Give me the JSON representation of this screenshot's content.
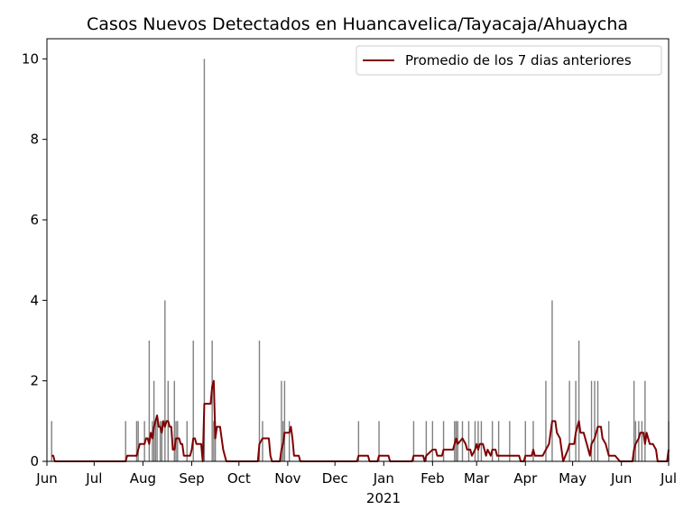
{
  "chart_data": {
    "type": "bar",
    "title": "Casos Nuevos Detectados en Huancavelica/Tayacaja/Ahuaycha",
    "xlabel": "",
    "ylabel": "",
    "x_year_label": "2021",
    "xlim": [
      "2020-06-01",
      "2021-07-01"
    ],
    "ylim": [
      0,
      10.5
    ],
    "yticks": [
      0,
      2,
      4,
      6,
      8,
      10
    ],
    "xticks": [
      {
        "date": "2020-06-01",
        "label": "Jun"
      },
      {
        "date": "2020-07-01",
        "label": "Jul"
      },
      {
        "date": "2020-08-01",
        "label": "Aug"
      },
      {
        "date": "2020-09-01",
        "label": "Sep"
      },
      {
        "date": "2020-10-01",
        "label": "Oct"
      },
      {
        "date": "2020-11-01",
        "label": "Nov"
      },
      {
        "date": "2020-12-01",
        "label": "Dec"
      },
      {
        "date": "2021-01-01",
        "label": "Jan"
      },
      {
        "date": "2021-02-01",
        "label": "Feb"
      },
      {
        "date": "2021-03-01",
        "label": "Mar"
      },
      {
        "date": "2021-04-01",
        "label": "Apr"
      },
      {
        "date": "2021-05-01",
        "label": "May"
      },
      {
        "date": "2021-06-01",
        "label": "Jun"
      },
      {
        "date": "2021-07-01",
        "label": "Jul"
      }
    ],
    "bars_color": "#808080",
    "line_color": "#800000",
    "legend_position": "top-right",
    "grid": false,
    "series": [
      {
        "type": "bar",
        "values": [
          [
            "2020-06-04",
            1
          ],
          [
            "2020-07-21",
            1
          ],
          [
            "2020-07-28",
            1
          ],
          [
            "2020-07-29",
            1
          ],
          [
            "2020-08-02",
            1
          ],
          [
            "2020-08-05",
            3
          ],
          [
            "2020-08-07",
            1
          ],
          [
            "2020-08-08",
            2
          ],
          [
            "2020-08-09",
            1
          ],
          [
            "2020-08-10",
            1
          ],
          [
            "2020-08-12",
            1
          ],
          [
            "2020-08-13",
            1
          ],
          [
            "2020-08-15",
            4
          ],
          [
            "2020-08-17",
            2
          ],
          [
            "2020-08-21",
            2
          ],
          [
            "2020-08-22",
            1
          ],
          [
            "2020-08-23",
            1
          ],
          [
            "2020-08-29",
            1
          ],
          [
            "2020-09-02",
            3
          ],
          [
            "2020-09-09",
            10
          ],
          [
            "2020-09-14",
            3
          ],
          [
            "2020-09-15",
            1
          ],
          [
            "2020-09-16",
            1
          ],
          [
            "2020-10-14",
            3
          ],
          [
            "2020-10-16",
            1
          ],
          [
            "2020-10-28",
            2
          ],
          [
            "2020-10-29",
            1
          ],
          [
            "2020-10-30",
            2
          ],
          [
            "2020-11-02",
            1
          ],
          [
            "2020-12-16",
            1
          ],
          [
            "2020-12-29",
            1
          ],
          [
            "2021-01-20",
            1
          ],
          [
            "2021-01-28",
            1
          ],
          [
            "2021-02-01",
            1
          ],
          [
            "2021-02-08",
            1
          ],
          [
            "2021-02-15",
            1
          ],
          [
            "2021-02-16",
            1
          ],
          [
            "2021-02-17",
            1
          ],
          [
            "2021-02-20",
            1
          ],
          [
            "2021-02-24",
            1
          ],
          [
            "2021-02-28",
            1
          ],
          [
            "2021-03-02",
            1
          ],
          [
            "2021-03-04",
            1
          ],
          [
            "2021-03-11",
            1
          ],
          [
            "2021-03-15",
            1
          ],
          [
            "2021-03-22",
            1
          ],
          [
            "2021-04-01",
            1
          ],
          [
            "2021-04-06",
            1
          ],
          [
            "2021-04-14",
            2
          ],
          [
            "2021-04-18",
            4
          ],
          [
            "2021-04-29",
            2
          ],
          [
            "2021-05-03",
            2
          ],
          [
            "2021-05-05",
            3
          ],
          [
            "2021-05-13",
            2
          ],
          [
            "2021-05-15",
            2
          ],
          [
            "2021-05-17",
            2
          ],
          [
            "2021-05-24",
            1
          ],
          [
            "2021-06-09",
            2
          ],
          [
            "2021-06-10",
            1
          ],
          [
            "2021-06-12",
            1
          ],
          [
            "2021-06-14",
            1
          ],
          [
            "2021-06-16",
            2
          ],
          [
            "2021-07-01",
            1
          ]
        ]
      },
      {
        "type": "line",
        "name": "Promedio de los 7 dias anteriores",
        "values": [
          [
            "2020-06-04",
            0.14
          ],
          [
            "2020-06-05",
            0.14
          ],
          [
            "2020-06-06",
            0
          ],
          [
            "2020-07-21",
            0
          ],
          [
            "2020-07-22",
            0.14
          ],
          [
            "2020-07-28",
            0.14
          ],
          [
            "2020-07-29",
            0.29
          ],
          [
            "2020-07-30",
            0.43
          ],
          [
            "2020-08-02",
            0.43
          ],
          [
            "2020-08-03",
            0.57
          ],
          [
            "2020-08-04",
            0.57
          ],
          [
            "2020-08-05",
            0.43
          ],
          [
            "2020-08-06",
            0.71
          ],
          [
            "2020-08-07",
            0.57
          ],
          [
            "2020-08-08",
            0.86
          ],
          [
            "2020-08-09",
            1.0
          ],
          [
            "2020-08-10",
            1.14
          ],
          [
            "2020-08-11",
            0.86
          ],
          [
            "2020-08-12",
            0.86
          ],
          [
            "2020-08-13",
            0.71
          ],
          [
            "2020-08-14",
            1.0
          ],
          [
            "2020-08-15",
            0.86
          ],
          [
            "2020-08-16",
            1.0
          ],
          [
            "2020-08-17",
            1.0
          ],
          [
            "2020-08-18",
            0.86
          ],
          [
            "2020-08-19",
            0.86
          ],
          [
            "2020-08-20",
            0.29
          ],
          [
            "2020-08-21",
            0.29
          ],
          [
            "2020-08-22",
            0.57
          ],
          [
            "2020-08-24",
            0.57
          ],
          [
            "2020-08-25",
            0.43
          ],
          [
            "2020-08-26",
            0.43
          ],
          [
            "2020-08-27",
            0.14
          ],
          [
            "2020-08-31",
            0.14
          ],
          [
            "2020-09-01",
            0.29
          ],
          [
            "2020-09-02",
            0.57
          ],
          [
            "2020-09-03",
            0.57
          ],
          [
            "2020-09-04",
            0.43
          ],
          [
            "2020-09-07",
            0.43
          ],
          [
            "2020-09-08",
            0
          ],
          [
            "2020-09-09",
            1.43
          ],
          [
            "2020-09-13",
            1.43
          ],
          [
            "2020-09-14",
            1.86
          ],
          [
            "2020-09-15",
            2.0
          ],
          [
            "2020-09-16",
            0.57
          ],
          [
            "2020-09-17",
            0.86
          ],
          [
            "2020-09-19",
            0.86
          ],
          [
            "2020-09-20",
            0.57
          ],
          [
            "2020-09-21",
            0.29
          ],
          [
            "2020-09-22",
            0.14
          ],
          [
            "2020-09-23",
            0
          ],
          [
            "2020-10-13",
            0
          ],
          [
            "2020-10-14",
            0.43
          ],
          [
            "2020-10-16",
            0.57
          ],
          [
            "2020-10-20",
            0.57
          ],
          [
            "2020-10-21",
            0.14
          ],
          [
            "2020-10-22",
            0
          ],
          [
            "2020-10-27",
            0
          ],
          [
            "2020-10-28",
            0.29
          ],
          [
            "2020-10-29",
            0.43
          ],
          [
            "2020-10-30",
            0.71
          ],
          [
            "2020-11-02",
            0.71
          ],
          [
            "2020-11-03",
            0.86
          ],
          [
            "2020-11-04",
            0.57
          ],
          [
            "2020-11-05",
            0.14
          ],
          [
            "2020-11-08",
            0.14
          ],
          [
            "2020-11-09",
            0
          ],
          [
            "2020-12-15",
            0
          ],
          [
            "2020-12-16",
            0.14
          ],
          [
            "2020-12-22",
            0.14
          ],
          [
            "2020-12-23",
            0
          ],
          [
            "2020-12-28",
            0
          ],
          [
            "2020-12-29",
            0.14
          ],
          [
            "2021-01-04",
            0.14
          ],
          [
            "2021-01-05",
            0
          ],
          [
            "2021-01-19",
            0
          ],
          [
            "2021-01-20",
            0.14
          ],
          [
            "2021-01-26",
            0.14
          ],
          [
            "2021-01-27",
            0
          ],
          [
            "2021-01-28",
            0.14
          ],
          [
            "2021-02-01",
            0.29
          ],
          [
            "2021-02-03",
            0.29
          ],
          [
            "2021-02-04",
            0.14
          ],
          [
            "2021-02-07",
            0.14
          ],
          [
            "2021-02-08",
            0.29
          ],
          [
            "2021-02-14",
            0.29
          ],
          [
            "2021-02-15",
            0.43
          ],
          [
            "2021-02-16",
            0.57
          ],
          [
            "2021-02-17",
            0.43
          ],
          [
            "2021-02-20",
            0.57
          ],
          [
            "2021-02-22",
            0.43
          ],
          [
            "2021-02-23",
            0.29
          ],
          [
            "2021-02-25",
            0.29
          ],
          [
            "2021-02-26",
            0.14
          ],
          [
            "2021-02-28",
            0.29
          ],
          [
            "2021-03-01",
            0.43
          ],
          [
            "2021-03-02",
            0.29
          ],
          [
            "2021-03-03",
            0.43
          ],
          [
            "2021-03-05",
            0.43
          ],
          [
            "2021-03-06",
            0.29
          ],
          [
            "2021-03-07",
            0.14
          ],
          [
            "2021-03-08",
            0.29
          ],
          [
            "2021-03-10",
            0.14
          ],
          [
            "2021-03-11",
            0.29
          ],
          [
            "2021-03-13",
            0.29
          ],
          [
            "2021-03-14",
            0.14
          ],
          [
            "2021-03-28",
            0.14
          ],
          [
            "2021-03-29",
            0
          ],
          [
            "2021-03-31",
            0
          ],
          [
            "2021-04-01",
            0.14
          ],
          [
            "2021-04-05",
            0.14
          ],
          [
            "2021-04-06",
            0.29
          ],
          [
            "2021-04-07",
            0.14
          ],
          [
            "2021-04-12",
            0.14
          ],
          [
            "2021-04-14",
            0.29
          ],
          [
            "2021-04-16",
            0.43
          ],
          [
            "2021-04-18",
            1.0
          ],
          [
            "2021-04-20",
            1.0
          ],
          [
            "2021-04-21",
            0.71
          ],
          [
            "2021-04-23",
            0.57
          ],
          [
            "2021-04-25",
            0
          ],
          [
            "2021-04-28",
            0.29
          ],
          [
            "2021-04-29",
            0.43
          ],
          [
            "2021-05-02",
            0.43
          ],
          [
            "2021-05-03",
            0.71
          ],
          [
            "2021-05-05",
            1.0
          ],
          [
            "2021-05-06",
            0.71
          ],
          [
            "2021-05-08",
            0.71
          ],
          [
            "2021-05-10",
            0.43
          ],
          [
            "2021-05-12",
            0.14
          ],
          [
            "2021-05-13",
            0.43
          ],
          [
            "2021-05-15",
            0.57
          ],
          [
            "2021-05-17",
            0.86
          ],
          [
            "2021-05-19",
            0.86
          ],
          [
            "2021-05-20",
            0.57
          ],
          [
            "2021-05-22",
            0.43
          ],
          [
            "2021-05-24",
            0.14
          ],
          [
            "2021-05-28",
            0.14
          ],
          [
            "2021-05-31",
            0
          ],
          [
            "2021-06-08",
            0
          ],
          [
            "2021-06-09",
            0.29
          ],
          [
            "2021-06-10",
            0.43
          ],
          [
            "2021-06-12",
            0.57
          ],
          [
            "2021-06-13",
            0.71
          ],
          [
            "2021-06-15",
            0.71
          ],
          [
            "2021-06-16",
            0.43
          ],
          [
            "2021-06-17",
            0.71
          ],
          [
            "2021-06-19",
            0.43
          ],
          [
            "2021-06-21",
            0.43
          ],
          [
            "2021-06-23",
            0.29
          ],
          [
            "2021-06-24",
            0
          ],
          [
            "2021-06-30",
            0
          ],
          [
            "2021-07-01",
            0.29
          ]
        ]
      }
    ]
  }
}
